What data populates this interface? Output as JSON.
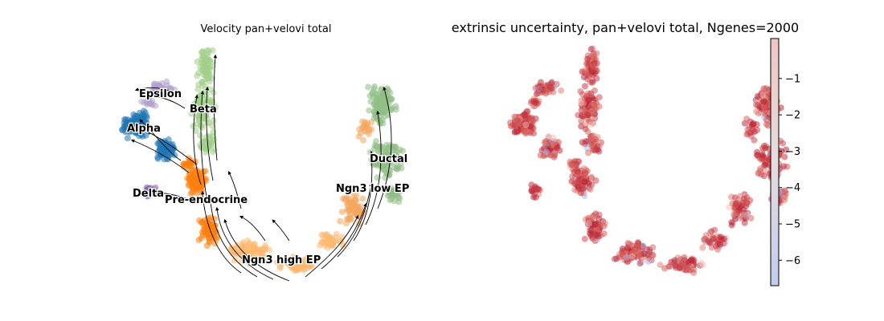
{
  "chart_data": [
    {
      "type": "scatter",
      "title": "Velocity pan+velovi total",
      "subtype": "umap-embedding-with-velocity-streamlines",
      "clusters": [
        {
          "name": "Epsilon",
          "color": "#b3a2cd"
        },
        {
          "name": "Beta",
          "color": "#a2d08a"
        },
        {
          "name": "Alpha",
          "color": "#1f77b4"
        },
        {
          "name": "Ductal",
          "color": "#8fbd85"
        },
        {
          "name": "Delta",
          "color": "#8160ab"
        },
        {
          "name": "Pre-endocrine",
          "color": "#fe7f0e"
        },
        {
          "name": "Ngn3 low EP",
          "color": "#f4a55f"
        },
        {
          "name": "Ngn3 high EP",
          "color": "#fdb86f"
        }
      ],
      "axes": "off",
      "legend": "on-data"
    },
    {
      "type": "scatter",
      "title": "extrinsic uncertainty, pan+velovi total, Ngenes=2000",
      "subtype": "umap-embedding-colored-by-value",
      "colorbar": {
        "colormap": "coolwarm",
        "min": -6.7,
        "max": 0.1,
        "ticks": [
          -1,
          -2,
          -3,
          -4,
          -5,
          -6
        ],
        "tick_labels": [
          "−1",
          "−2",
          "−3",
          "−4",
          "−5",
          "−6"
        ]
      },
      "axes": "off"
    }
  ]
}
